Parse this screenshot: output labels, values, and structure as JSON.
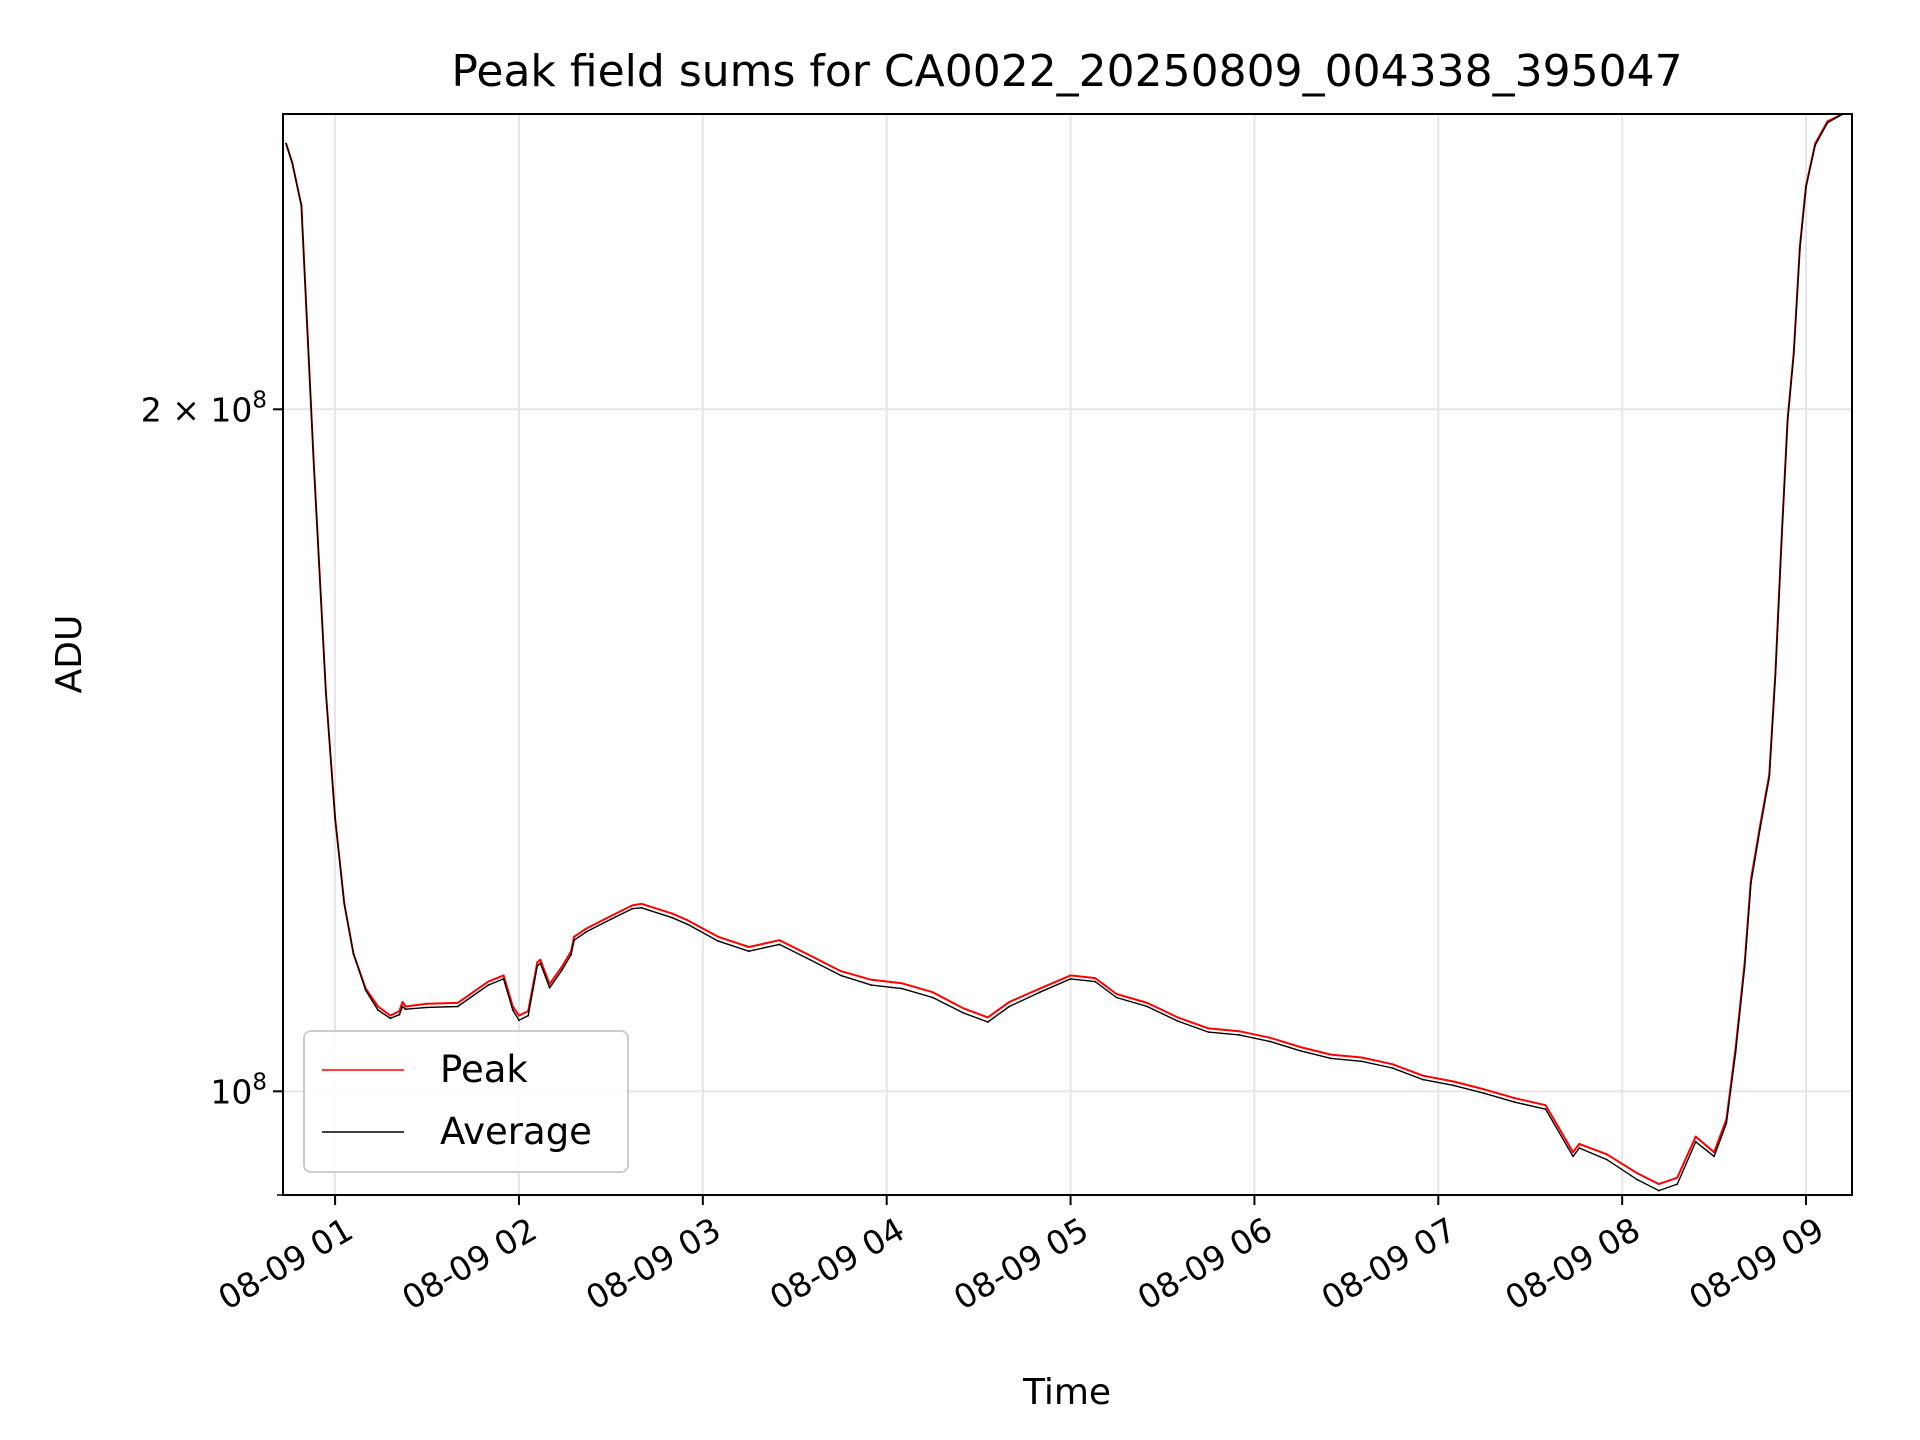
{
  "chart_data": {
    "type": "line",
    "title": "Peak field sums for CA0022_20250809_004338_395047",
    "xlabel": "Time",
    "ylabel": "ADU",
    "yscale": "log",
    "xlim": [
      "08-09 00:43",
      "08-09 09:15"
    ],
    "ylim": [
      90000000,
      270000000
    ],
    "grid": true,
    "legend_position": "lower-left",
    "x_ticks": [
      "08-09 01",
      "08-09 02",
      "08-09 03",
      "08-09 04",
      "08-09 05",
      "08-09 06",
      "08-09 07",
      "08-09 08",
      "08-09 09"
    ],
    "y_ticks": [
      {
        "value": 200000000,
        "mantissa": "2",
        "exponent": "8"
      },
      {
        "value": 100000000,
        "mantissa": "",
        "exponent": "8"
      }
    ],
    "series": [
      {
        "name": "Peak",
        "color": "#ff0000",
        "x": [
          "08-09 00:44",
          "08-09 00:46",
          "08-09 00:49",
          "08-09 00:53",
          "08-09 00:57",
          "08-09 01:00",
          "08-09 01:03",
          "08-09 01:06",
          "08-09 01:10",
          "08-09 01:14",
          "08-09 01:18",
          "08-09 01:21",
          "08-09 01:22",
          "08-09 01:23",
          "08-09 01:30",
          "08-09 01:40",
          "08-09 01:50",
          "08-09 01:55",
          "08-09 01:58",
          "08-09 02:00",
          "08-09 02:03",
          "08-09 02:06",
          "08-09 02:07",
          "08-09 02:10",
          "08-09 02:14",
          "08-09 02:17",
          "08-09 02:18",
          "08-09 02:22",
          "08-09 02:30",
          "08-09 02:37",
          "08-09 02:40",
          "08-09 02:50",
          "08-09 02:55",
          "08-09 03:05",
          "08-09 03:15",
          "08-09 03:25",
          "08-09 03:35",
          "08-09 03:45",
          "08-09 03:55",
          "08-09 04:05",
          "08-09 04:15",
          "08-09 04:25",
          "08-09 04:33",
          "08-09 04:40",
          "08-09 04:50",
          "08-09 05:00",
          "08-09 05:08",
          "08-09 05:15",
          "08-09 05:25",
          "08-09 05:35",
          "08-09 05:45",
          "08-09 05:55",
          "08-09 06:05",
          "08-09 06:15",
          "08-09 06:25",
          "08-09 06:35",
          "08-09 06:45",
          "08-09 06:55",
          "08-09 07:05",
          "08-09 07:15",
          "08-09 07:25",
          "08-09 07:35",
          "08-09 07:44",
          "08-09 07:46",
          "08-09 07:55",
          "08-09 08:05",
          "08-09 08:12",
          "08-09 08:18",
          "08-09 08:24",
          "08-09 08:30",
          "08-09 08:34",
          "08-09 08:37",
          "08-09 08:40",
          "08-09 08:42",
          "08-09 08:45",
          "08-09 08:48",
          "08-09 08:50",
          "08-09 08:52",
          "08-09 08:54",
          "08-09 08:56",
          "08-09 08:58",
          "08-09 09:00",
          "08-09 09:03",
          "08-09 09:07",
          "08-09 09:12"
        ],
        "values": [
          262000000,
          257000000,
          246000000,
          190000000,
          150000000,
          132000000,
          121000000,
          115000000,
          111000000,
          109000000,
          108000000,
          108500000,
          109500000,
          109000000,
          109300000,
          109400000,
          111800000,
          112500000,
          109000000,
          108000000,
          108500000,
          114000000,
          114300000,
          111500000,
          113500000,
          115300000,
          117000000,
          118000000,
          119500000,
          120800000,
          121000000,
          119800000,
          119000000,
          117000000,
          115800000,
          116600000,
          114800000,
          113000000,
          112000000,
          111600000,
          110600000,
          108800000,
          107800000,
          109500000,
          111000000,
          112500000,
          112200000,
          110400000,
          109400000,
          107800000,
          106600000,
          106300000,
          105600000,
          104600000,
          103800000,
          103500000,
          102800000,
          101600000,
          101000000,
          100200000,
          99300000,
          98600000,
          94000000,
          94800000,
          93800000,
          92000000,
          91000000,
          91600000,
          95500000,
          94000000,
          97200000,
          104500000,
          114000000,
          124000000,
          131000000,
          138000000,
          153000000,
          175000000,
          198000000,
          212000000,
          236000000,
          251000000,
          262000000,
          268000000,
          270000000
        ]
      },
      {
        "name": "Average",
        "color": "#000000",
        "x": [
          "08-09 00:44",
          "08-09 00:46",
          "08-09 00:49",
          "08-09 00:53",
          "08-09 00:57",
          "08-09 01:00",
          "08-09 01:03",
          "08-09 01:06",
          "08-09 01:10",
          "08-09 01:14",
          "08-09 01:18",
          "08-09 01:21",
          "08-09 01:22",
          "08-09 01:23",
          "08-09 01:30",
          "08-09 01:40",
          "08-09 01:50",
          "08-09 01:55",
          "08-09 01:58",
          "08-09 02:00",
          "08-09 02:03",
          "08-09 02:06",
          "08-09 02:07",
          "08-09 02:10",
          "08-09 02:14",
          "08-09 02:17",
          "08-09 02:18",
          "08-09 02:22",
          "08-09 02:30",
          "08-09 02:37",
          "08-09 02:40",
          "08-09 02:50",
          "08-09 02:55",
          "08-09 03:05",
          "08-09 03:15",
          "08-09 03:25",
          "08-09 03:35",
          "08-09 03:45",
          "08-09 03:55",
          "08-09 04:05",
          "08-09 04:15",
          "08-09 04:25",
          "08-09 04:33",
          "08-09 04:40",
          "08-09 04:50",
          "08-09 05:00",
          "08-09 05:08",
          "08-09 05:15",
          "08-09 05:25",
          "08-09 05:35",
          "08-09 05:45",
          "08-09 05:55",
          "08-09 06:05",
          "08-09 06:15",
          "08-09 06:25",
          "08-09 06:35",
          "08-09 06:45",
          "08-09 06:55",
          "08-09 07:05",
          "08-09 07:15",
          "08-09 07:25",
          "08-09 07:35",
          "08-09 07:44",
          "08-09 07:46",
          "08-09 07:55",
          "08-09 08:05",
          "08-09 08:12",
          "08-09 08:18",
          "08-09 08:24",
          "08-09 08:30",
          "08-09 08:34",
          "08-09 08:37",
          "08-09 08:40",
          "08-09 08:42",
          "08-09 08:45",
          "08-09 08:48",
          "08-09 08:50",
          "08-09 08:52",
          "08-09 08:54",
          "08-09 08:56",
          "08-09 08:58",
          "08-09 09:00",
          "08-09 09:03",
          "08-09 09:07",
          "08-09 09:12"
        ],
        "values": [
          262000000,
          257000000,
          246000000,
          190000000,
          150000000,
          132000000,
          121000000,
          115000000,
          110800000,
          108600000,
          107700000,
          108100000,
          109000000,
          108700000,
          108900000,
          109000000,
          111400000,
          112100000,
          108600000,
          107500000,
          108000000,
          113600000,
          113900000,
          111100000,
          113100000,
          114900000,
          116600000,
          117600000,
          119100000,
          120400000,
          120500000,
          119300000,
          118500000,
          116500000,
          115300000,
          116100000,
          114300000,
          112500000,
          111400000,
          111000000,
          110000000,
          108300000,
          107300000,
          109000000,
          110600000,
          112100000,
          111800000,
          110000000,
          109000000,
          107400000,
          106200000,
          105900000,
          105200000,
          104200000,
          103400000,
          103100000,
          102400000,
          101200000,
          100600000,
          99800000,
          98900000,
          98200000,
          93600000,
          94400000,
          93300000,
          91400000,
          90400000,
          91000000,
          95000000,
          93600000,
          96800000,
          104000000,
          113500000,
          123500000,
          130600000,
          137600000,
          152600000,
          174600000,
          197600000,
          211600000,
          235600000,
          250600000,
          261600000,
          267600000,
          270000000
        ]
      }
    ]
  }
}
